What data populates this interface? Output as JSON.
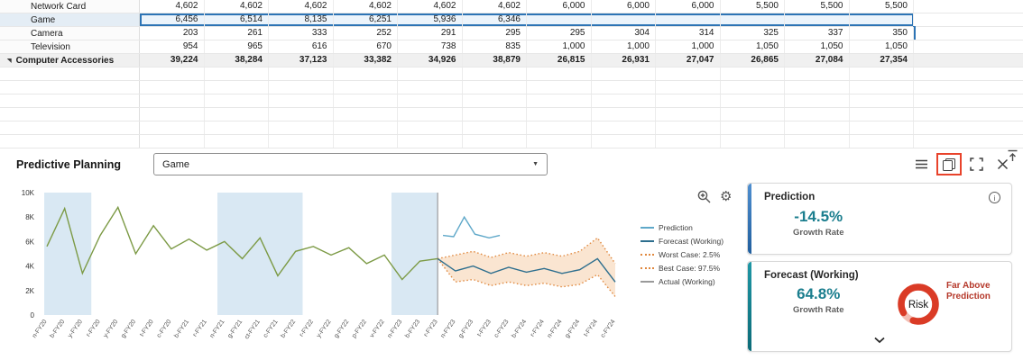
{
  "icons": {
    "info": "i",
    "gear": "⚙",
    "dropdown_arrow": "▼"
  },
  "grid": {
    "columns": 12,
    "empty_rows": 6,
    "rows": [
      {
        "label": "Network Card",
        "type": "normal",
        "values": [
          "4,602",
          "4,602",
          "4,602",
          "4,602",
          "4,602",
          "4,602",
          "6,000",
          "6,000",
          "6,000",
          "5,500",
          "5,500",
          "5,500"
        ]
      },
      {
        "label": "Game",
        "type": "selected",
        "values": [
          "6,456",
          "6,514",
          "8,135",
          "6,251",
          "5,936",
          "6,346",
          "",
          "",
          "",
          "",
          "",
          ""
        ]
      },
      {
        "label": "Camera",
        "type": "normal",
        "values": [
          "203",
          "261",
          "333",
          "252",
          "291",
          "295",
          "295",
          "304",
          "314",
          "325",
          "337",
          "350"
        ]
      },
      {
        "label": "Television",
        "type": "normal",
        "values": [
          "954",
          "965",
          "616",
          "670",
          "738",
          "835",
          "1,000",
          "1,000",
          "1,000",
          "1,050",
          "1,050",
          "1,050"
        ]
      },
      {
        "label": "Computer Accessories",
        "type": "total",
        "marker": "◥",
        "values": [
          "39,224",
          "38,284",
          "37,123",
          "33,382",
          "34,926",
          "38,879",
          "26,815",
          "26,931",
          "27,047",
          "26,865",
          "27,084",
          "27,354"
        ]
      }
    ]
  },
  "panel": {
    "title": "Predictive Planning",
    "member_selector": {
      "value": "Game"
    }
  },
  "chart_data": {
    "type": "line",
    "title": "",
    "xlabel": "",
    "ylabel": "",
    "ylim": [
      0,
      10000
    ],
    "ytick_labels": [
      "0",
      "2K",
      "4K",
      "6K",
      "8K",
      "10K"
    ],
    "x_labels": [
      "n-FY20",
      "b-FY20",
      "y-FY20",
      "r-FY20",
      "y-FY20",
      "g-FY20",
      "t-FY20",
      "c-FY20",
      "b-FY21",
      "r-FY21",
      "n-FY21",
      "g-FY21",
      "ct-FY21",
      "c-FY21",
      "b-FY22",
      "r-FY22",
      "y-FY22",
      "g-FY22",
      "p-FY22",
      "v-FY22",
      "n-FY23",
      "b-FY23",
      "r-FY23",
      "n-FY23",
      "g-FY23",
      "t-FY23",
      "c-FY23",
      "b-FY24",
      "r-FY24",
      "n-FY24",
      "g-FY24",
      "t-FY24",
      "c-FY24"
    ],
    "separator_index": 22,
    "shaded_bands": [
      [
        -0.15,
        2.5
      ],
      [
        9.6,
        14.4
      ],
      [
        19.4,
        22
      ]
    ],
    "shade_color": "#d9e8f3",
    "band_fill_color": "#f5cba4",
    "series": {
      "actual": {
        "name": "Actual (Working)",
        "color": "#7c9a45",
        "start_index": 0,
        "values": [
          5600,
          8700,
          3400,
          6500,
          8800,
          5000,
          7300,
          5400,
          6200,
          5300,
          6000,
          4600,
          6300,
          3200,
          5200,
          5600,
          4900,
          5500,
          4200,
          4900,
          2900,
          4400,
          4600
        ]
      },
      "prediction": {
        "name": "Prediction",
        "color": "#5fa8c9",
        "points": [
          [
            22.3,
            6500
          ],
          [
            22.9,
            6400
          ],
          [
            23.5,
            8000
          ],
          [
            24.1,
            6600
          ],
          [
            24.9,
            6300
          ],
          [
            25.5,
            6500
          ]
        ]
      },
      "forecast": {
        "name": "Forecast (Working)",
        "color": "#2d6e8e",
        "start_index": 22,
        "values": [
          4600,
          3600,
          4000,
          3400,
          3900,
          3500,
          3800,
          3400,
          3700,
          4600,
          2700
        ]
      },
      "worst": {
        "name": "Worst Case: 2.5%",
        "color": "#e0883e",
        "dash": true,
        "start_index": 22,
        "values": [
          4600,
          2700,
          2900,
          2400,
          2700,
          2400,
          2600,
          2300,
          2500,
          3300,
          1500
        ]
      },
      "best": {
        "name": "Best Case: 97.5%",
        "color": "#e0883e",
        "dash": true,
        "start_index": 22,
        "values": [
          4600,
          4900,
          5200,
          4700,
          5100,
          4800,
          5100,
          4800,
          5200,
          6300,
          4200
        ]
      }
    },
    "legend": [
      {
        "label": "Prediction",
        "color": "#5fa8c9",
        "dash": false
      },
      {
        "label": "Forecast (Working)",
        "color": "#2d6e8e",
        "dash": false
      },
      {
        "label": "Worst Case: 2.5%",
        "color": "#e0883e",
        "dash": true
      },
      {
        "label": "Best Case: 97.5%",
        "color": "#e0883e",
        "dash": true
      },
      {
        "label": "Actual (Working)",
        "color": "#9a9a9a",
        "dash": false
      }
    ],
    "legend_position": "right"
  },
  "cards": {
    "prediction": {
      "title": "Prediction",
      "value": "-14.5%",
      "subtitle": "Growth Rate"
    },
    "forecast": {
      "title": "Forecast (Working)",
      "value": "64.8%",
      "subtitle": "Growth Rate",
      "risk_label": "Risk",
      "risk_note": "Far Above Prediction"
    }
  },
  "colors": {
    "selection_blue": "#2d74b5",
    "metric_teal": "#1b7e8e",
    "risk_red": "#da3b26",
    "annotation_red": "#e8432b",
    "shade_blue": "#d9e8f3",
    "actual_green": "#7c9a45"
  }
}
